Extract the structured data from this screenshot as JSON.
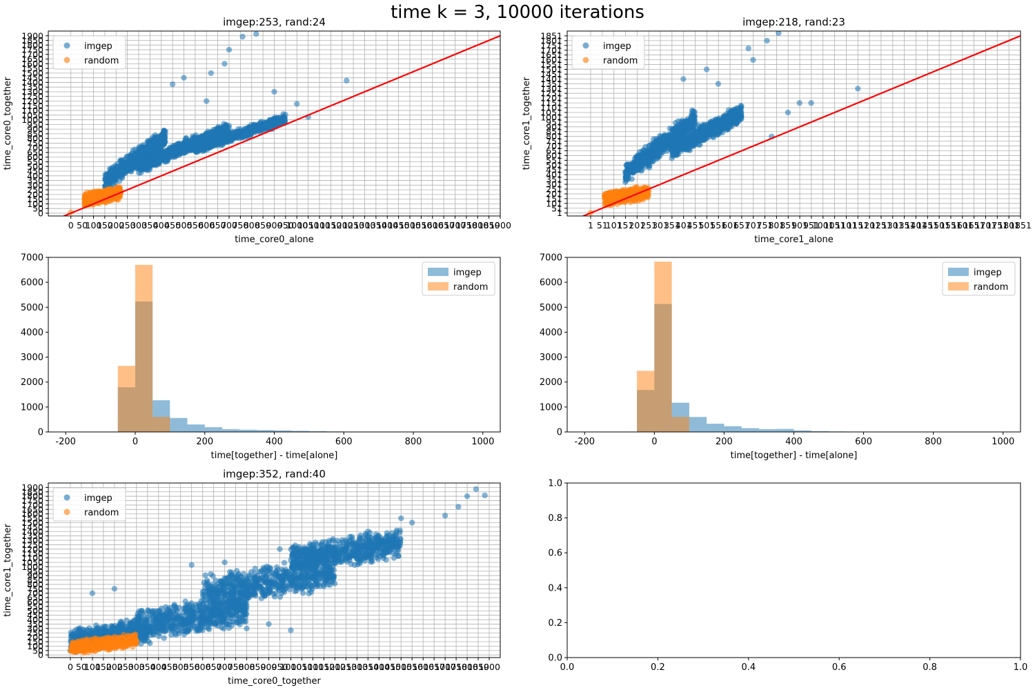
{
  "figure": {
    "title": "time k = 3, 10000 iterations"
  },
  "colors": {
    "imgep": "#1f77b4",
    "random": "#ff7f0e",
    "line": "#ff0000",
    "grid": "#b0b0b0"
  },
  "chart_data": [
    {
      "type": "scatter",
      "title": "imgep:253, rand:24",
      "xlabel": "time_core0_alone",
      "ylabel": "time_core0_together",
      "xlim": [
        -100,
        1900
      ],
      "ylim": [
        -30,
        1950
      ],
      "xticks": [
        0,
        50,
        100,
        150,
        200,
        250,
        300,
        350,
        400,
        450,
        500,
        550,
        600,
        650,
        700,
        750,
        800,
        850,
        900,
        950,
        1000,
        1050,
        1100,
        1150,
        1200,
        1250,
        1300,
        1350,
        1400,
        1450,
        1500,
        1550,
        1600,
        1650,
        1700,
        1750,
        1800,
        1850,
        1900
      ],
      "yticks": [
        0,
        50,
        100,
        150,
        200,
        250,
        300,
        350,
        400,
        450,
        500,
        550,
        600,
        650,
        700,
        750,
        800,
        850,
        900,
        950,
        1000,
        1050,
        1100,
        1150,
        1200,
        1250,
        1300,
        1350,
        1400,
        1450,
        1500,
        1550,
        1600,
        1650,
        1700,
        1750,
        1800,
        1850,
        1900
      ],
      "grid": true,
      "legend": "upper-left",
      "reference_line": "y = x",
      "series": [
        {
          "name": "imgep",
          "clusters": [
            {
              "x": [
                150,
                420
              ],
              "y": [
                200,
                950
              ],
              "slope": 2.2
            },
            {
              "x": [
                300,
                700
              ],
              "y": [
                400,
                1000
              ],
              "slope": 1.3
            },
            {
              "x": [
                550,
                950
              ],
              "y": [
                650,
                1050
              ],
              "slope": 1.0
            }
          ],
          "points": [
            [
              680,
              1600
            ],
            [
              760,
              1890
            ],
            [
              820,
              1920
            ],
            [
              700,
              1750
            ],
            [
              620,
              1500
            ],
            [
              500,
              1450
            ],
            [
              450,
              1380
            ],
            [
              1220,
              1420
            ],
            [
              1000,
              1170
            ],
            [
              1050,
              1030
            ],
            [
              880,
              1000
            ],
            [
              600,
              1200
            ],
            [
              900,
              1300
            ]
          ]
        },
        {
          "name": "random",
          "clusters": [
            {
              "x": [
                60,
                220
              ],
              "y": [
                60,
                300
              ]
            }
          ],
          "points": [
            [
              0,
              10
            ]
          ]
        }
      ]
    },
    {
      "type": "scatter",
      "title": "imgep:218, rand:23",
      "xlabel": "time_core1_alone",
      "ylabel": "time_core1_together",
      "xlim": [
        -100,
        1851
      ],
      "ylim": [
        -30,
        1901
      ],
      "xticks": [
        1,
        51,
        101,
        151,
        201,
        251,
        301,
        351,
        401,
        451,
        501,
        551,
        601,
        651,
        701,
        751,
        801,
        851,
        901,
        951,
        1001,
        1051,
        1101,
        1151,
        1201,
        1251,
        1301,
        1351,
        1401,
        1451,
        1501,
        1551,
        1601,
        1651,
        1701,
        1751,
        1801,
        1851
      ],
      "yticks": [
        1,
        51,
        101,
        151,
        201,
        251,
        301,
        351,
        401,
        451,
        501,
        551,
        601,
        651,
        701,
        751,
        801,
        851,
        901,
        951,
        1001,
        1051,
        1101,
        1151,
        1201,
        1251,
        1301,
        1351,
        1401,
        1451,
        1501,
        1551,
        1601,
        1651,
        1701,
        1751,
        1801,
        1851
      ],
      "grid": true,
      "legend": "upper-left",
      "reference_line": "y = x",
      "series": [
        {
          "name": "imgep",
          "clusters": [
            {
              "x": [
                150,
                450
              ],
              "y": [
                300,
                1100
              ],
              "slope": 2.4
            },
            {
              "x": [
                350,
                650
              ],
              "y": [
                500,
                1200
              ],
              "slope": 1.6
            }
          ],
          "points": [
            [
              810,
              1880
            ],
            [
              760,
              1800
            ],
            [
              680,
              1720
            ],
            [
              700,
              1600
            ],
            [
              900,
              1150
            ],
            [
              950,
              1150
            ],
            [
              1151,
              1300
            ],
            [
              850,
              1050
            ],
            [
              780,
              800
            ],
            [
              600,
              1050
            ],
            [
              400,
              1400
            ],
            [
              550,
              1350
            ],
            [
              500,
              1500
            ]
          ]
        },
        {
          "name": "random",
          "clusters": [
            {
              "x": [
                60,
                250
              ],
              "y": [
                60,
                300
              ]
            }
          ],
          "points": [
            [
              1,
              5
            ]
          ]
        }
      ]
    },
    {
      "type": "histogram",
      "xlabel": "time[together] - time[alone]",
      "ylabel": "",
      "xlim": [
        -250,
        1050
      ],
      "ylim": [
        0,
        7000
      ],
      "xticks": [
        -200,
        0,
        200,
        400,
        600,
        800,
        1000
      ],
      "yticks": [
        0,
        1000,
        2000,
        3000,
        4000,
        5000,
        6000,
        7000
      ],
      "legend": "upper-right",
      "bin_width": 50,
      "series": [
        {
          "name": "imgep",
          "bin_start": -100,
          "counts": [
            10,
            1790,
            5230,
            1270,
            560,
            300,
            190,
            110,
            90,
            75,
            60,
            45,
            30,
            20,
            12
          ]
        },
        {
          "name": "random",
          "bin_start": -50,
          "counts": [
            2650,
            6700,
            600
          ]
        }
      ]
    },
    {
      "type": "histogram",
      "xlabel": "time[together] - time[alone]",
      "ylabel": "",
      "xlim": [
        -250,
        1050
      ],
      "ylim": [
        0,
        7000
      ],
      "xticks": [
        -200,
        0,
        200,
        400,
        600,
        800,
        1000
      ],
      "yticks": [
        0,
        1000,
        2000,
        3000,
        4000,
        5000,
        6000,
        7000
      ],
      "legend": "upper-right",
      "bin_width": 50,
      "series": [
        {
          "name": "imgep",
          "bin_start": -100,
          "counts": [
            10,
            1680,
            5130,
            1170,
            600,
            330,
            230,
            150,
            110,
            120,
            60,
            30,
            20,
            15
          ]
        },
        {
          "name": "random",
          "bin_start": -50,
          "counts": [
            2450,
            6830,
            600
          ]
        }
      ]
    },
    {
      "type": "scatter",
      "title": "imgep:352, rand:40",
      "xlabel": "time_core0_together",
      "ylabel": "time_core1_together",
      "xlim": [
        -100,
        1950
      ],
      "ylim": [
        -30,
        1950
      ],
      "xticks": [
        0,
        50,
        100,
        150,
        200,
        250,
        300,
        350,
        400,
        450,
        500,
        550,
        600,
        650,
        700,
        750,
        800,
        850,
        900,
        950,
        1000,
        1050,
        1100,
        1150,
        1200,
        1250,
        1300,
        1350,
        1400,
        1450,
        1500,
        1550,
        1600,
        1650,
        1700,
        1750,
        1800,
        1850,
        1900
      ],
      "yticks": [
        0,
        50,
        100,
        150,
        200,
        250,
        300,
        350,
        400,
        450,
        500,
        550,
        600,
        650,
        700,
        750,
        800,
        850,
        900,
        950,
        1000,
        1050,
        1100,
        1150,
        1200,
        1250,
        1300,
        1350,
        1400,
        1450,
        1500,
        1550,
        1600,
        1650,
        1700,
        1750,
        1800,
        1850,
        1900
      ],
      "grid": true,
      "legend": "upper-left",
      "series": [
        {
          "name": "imgep",
          "clusters": [
            {
              "x": [
                0,
                350
              ],
              "y": [
                0,
                450
              ]
            },
            {
              "x": [
                300,
                800
              ],
              "y": [
                100,
                750
              ]
            },
            {
              "x": [
                600,
                1200
              ],
              "y": [
                500,
                1150
              ]
            },
            {
              "x": [
                1000,
                1500
              ],
              "y": [
                900,
                1450
              ]
            }
          ],
          "points": [
            [
              1800,
              1800
            ],
            [
              1840,
              1880
            ],
            [
              1880,
              1810
            ],
            [
              1760,
              1680
            ],
            [
              1700,
              1580
            ],
            [
              1500,
              1550
            ],
            [
              1550,
              1500
            ],
            [
              1350,
              1400
            ],
            [
              1250,
              1200
            ],
            [
              950,
              1200
            ],
            [
              700,
              1050
            ],
            [
              550,
              1020
            ],
            [
              100,
              700
            ],
            [
              200,
              750
            ],
            [
              900,
              350
            ],
            [
              1000,
              280
            ],
            [
              800,
              300
            ]
          ]
        },
        {
          "name": "random",
          "clusters": [
            {
              "x": [
                0,
                300
              ],
              "y": [
                0,
                250
              ]
            }
          ],
          "points": []
        }
      ]
    },
    {
      "type": "empty",
      "xlim": [
        0,
        1
      ],
      "ylim": [
        0,
        1
      ],
      "xticks": [
        0.0,
        0.2,
        0.4,
        0.6,
        0.8,
        1.0
      ],
      "yticks": [
        0.0,
        0.2,
        0.4,
        0.6,
        0.8,
        1.0
      ]
    }
  ]
}
